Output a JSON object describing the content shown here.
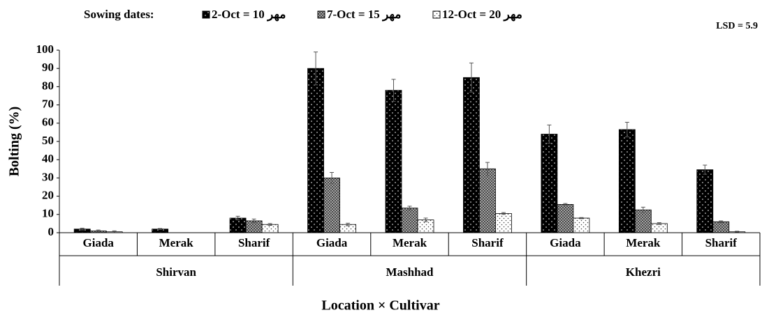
{
  "chart_data": {
    "type": "bar",
    "legend_title": "Sowing dates:",
    "annotation": "LSD = 5.9",
    "y_label": "Bolting (%)",
    "x_label": "Location × Cultivar",
    "categories": [
      "Giada",
      "Merak",
      "Sharif",
      "Giada",
      "Merak",
      "Sharif",
      "Giada",
      "Merak",
      "Sharif"
    ],
    "category_groups": [
      "Shirvan",
      "Mashhad",
      "Khezri"
    ],
    "series": [
      {
        "name": "2-Oct = 10 مهر",
        "color": "#000000",
        "values": [
          2,
          2,
          8,
          90,
          78,
          85,
          54,
          56.5,
          34.5
        ],
        "errors": [
          0.5,
          0.3,
          1,
          9,
          6,
          8,
          5,
          4,
          2.5
        ]
      },
      {
        "name": "7-Oct = 15 مهر",
        "color": "#7f7f7f",
        "values": [
          1,
          0,
          6.5,
          30,
          13.5,
          35,
          15.5,
          12.5,
          6
        ],
        "errors": [
          0.5,
          0,
          1,
          3,
          1,
          3.5,
          0.5,
          1.5,
          0.5
        ]
      },
      {
        "name": "12-Oct = 20 مهر",
        "color": "#ffffff",
        "values": [
          0.5,
          0,
          4.5,
          4.5,
          7,
          10.5,
          8,
          5,
          0.5
        ],
        "errors": [
          0.5,
          0,
          0.5,
          0.7,
          1,
          0.5,
          0.3,
          0.5,
          0.3
        ]
      }
    ],
    "ylim": [
      0,
      100
    ],
    "yticks": [
      0,
      10,
      20,
      30,
      40,
      50,
      60,
      70,
      80,
      90,
      100
    ],
    "grid": false
  }
}
